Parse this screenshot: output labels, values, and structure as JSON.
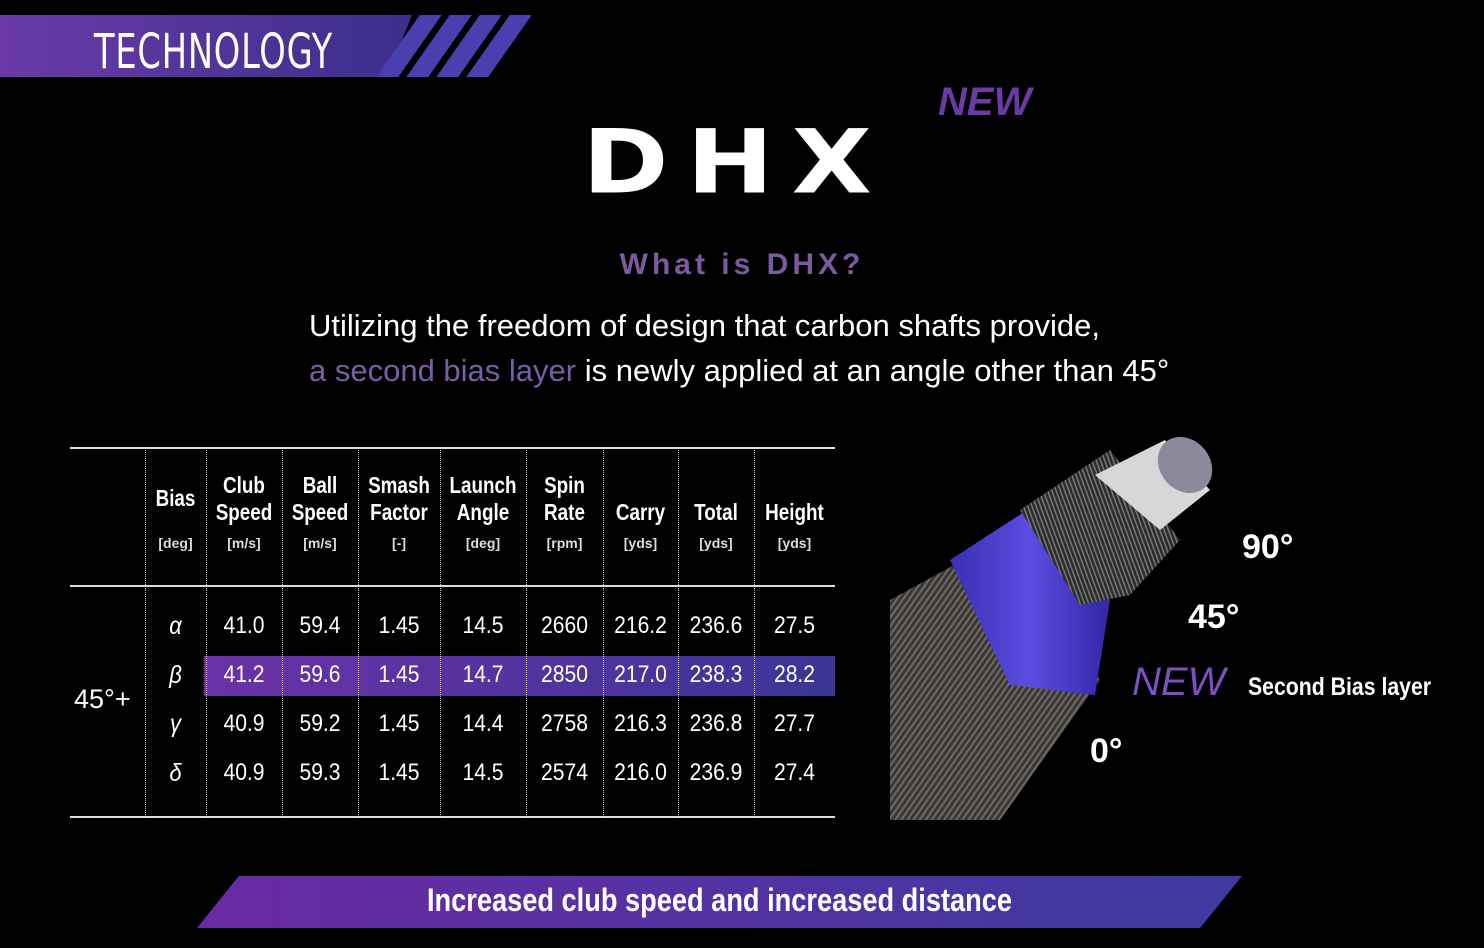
{
  "header": {
    "section_title": "TECHNOLOGY",
    "logo_text": "DHX",
    "new_badge": "NEW"
  },
  "intro": {
    "question": "What is DHX?",
    "line1": "Utilizing the freedom of design that carbon shafts provide,",
    "line2_accent": "a second bias layer",
    "line2_rest": " is newly applied at an angle other than 45°"
  },
  "table": {
    "columns": [
      {
        "label": [
          "Bias",
          ""
        ],
        "unit": "[deg]"
      },
      {
        "label": [
          "Club",
          "Speed"
        ],
        "unit": "[m/s]"
      },
      {
        "label": [
          "Ball",
          "Speed"
        ],
        "unit": "[m/s]"
      },
      {
        "label": [
          "Smash",
          "Factor"
        ],
        "unit": "[-]"
      },
      {
        "label": [
          "Launch",
          "Angle"
        ],
        "unit": "[deg]"
      },
      {
        "label": [
          "Spin",
          "Rate"
        ],
        "unit": "[rpm]"
      },
      {
        "label": [
          "",
          "Carry"
        ],
        "unit": "[yds]"
      },
      {
        "label": [
          "",
          "Total"
        ],
        "unit": "[yds]"
      },
      {
        "label": [
          "",
          "Height"
        ],
        "unit": "[yds]"
      }
    ],
    "group_label": "45°+",
    "rows": [
      {
        "bias": "α",
        "values": [
          "41.0",
          "59.4",
          "1.45",
          "14.5",
          "2660",
          "216.2",
          "236.6",
          "27.5"
        ],
        "highlighted": false
      },
      {
        "bias": "β",
        "values": [
          "41.2",
          "59.6",
          "1.45",
          "14.7",
          "2850",
          "217.0",
          "238.3",
          "28.2"
        ],
        "highlighted": true
      },
      {
        "bias": "γ",
        "values": [
          "40.9",
          "59.2",
          "1.45",
          "14.4",
          "2758",
          "216.3",
          "236.8",
          "27.7"
        ],
        "highlighted": false
      },
      {
        "bias": "δ",
        "values": [
          "40.9",
          "59.3",
          "1.45",
          "14.5",
          "2574",
          "216.0",
          "236.9",
          "27.4"
        ],
        "highlighted": false
      }
    ]
  },
  "diagram": {
    "angle_90": "90°",
    "angle_45": "45°",
    "angle_0": "0°",
    "new_label": "NEW",
    "layer_label": "Second Bias layer"
  },
  "footer": {
    "banner_text": "Increased club speed and increased distance"
  },
  "colors": {
    "accent_purple": "#6a32a6",
    "accent_blue": "#3b3596",
    "text_accent": "#7b5ca6"
  }
}
